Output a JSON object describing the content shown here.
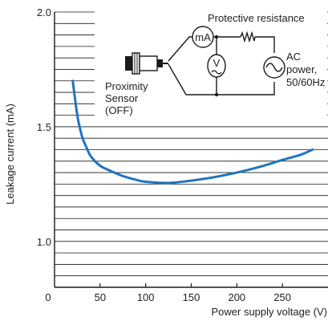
{
  "colors": {
    "curve": "#1f74c0",
    "grid": "#1a1a1a",
    "axis": "#1a1a1a",
    "text": "#222222",
    "diagram": "#1a1a1a"
  },
  "chart_data": {
    "type": "line",
    "title": "",
    "xlabel": "Power supply voltage (V)",
    "ylabel": "Leakage current (mA)",
    "xlim": [
      0,
      300
    ],
    "ylim": [
      0.8,
      2.0
    ],
    "x_ticks": [
      0,
      50,
      100,
      150,
      200,
      250
    ],
    "x_tick_labels": [
      "0",
      "50",
      "100",
      "150",
      "200",
      "250"
    ],
    "y_ticks": [
      1.0,
      1.5,
      2.0
    ],
    "y_tick_labels": [
      "1.0",
      "1.5",
      "2.0"
    ],
    "grid": "horizontal",
    "horizontal_gridlines": [
      0.85,
      0.9,
      0.95,
      1.0,
      1.05,
      1.1,
      1.15,
      1.2,
      1.25,
      1.3,
      1.35,
      1.4,
      1.45,
      1.5,
      1.55,
      1.6,
      1.65,
      1.7,
      1.75,
      1.8,
      1.85,
      1.9,
      1.95,
      2.0
    ],
    "series": [
      {
        "x": [
          20,
          25,
          30,
          35,
          40,
          50,
          60,
          75,
          90,
          100,
          125,
          150,
          175,
          200,
          225,
          250,
          270,
          283
        ],
        "y": [
          1.7,
          1.55,
          1.46,
          1.41,
          1.37,
          1.33,
          1.31,
          1.285,
          1.268,
          1.26,
          1.255,
          1.265,
          1.28,
          1.3,
          1.325,
          1.355,
          1.378,
          1.4
        ]
      }
    ],
    "inset": {
      "labels": {
        "protective_resistance": "Protective resistance",
        "milliammeter": "mA",
        "voltmeter": "V",
        "ac_power": [
          "AC",
          "power,",
          "50/60Hz"
        ],
        "sensor": [
          "Proximity",
          "Sensor",
          "(OFF)"
        ]
      }
    }
  }
}
